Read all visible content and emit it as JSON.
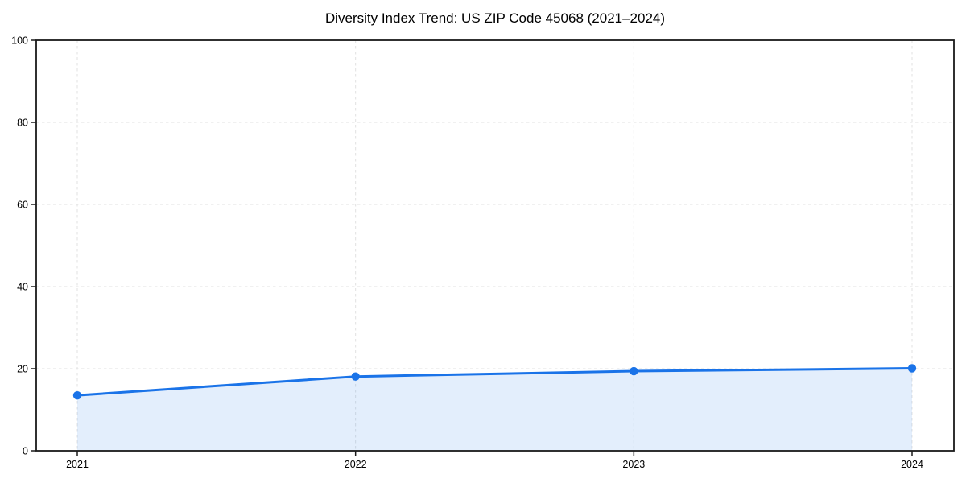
{
  "page": {
    "background": "#ffffff"
  },
  "chart_data": {
    "type": "line",
    "title": "Diversity Index Trend: US ZIP Code 45068 (2021–2024)",
    "categories": [
      "2021",
      "2022",
      "2023",
      "2024"
    ],
    "series": [
      {
        "name": "Diversity Index",
        "values": [
          13.5,
          18.1,
          19.4,
          20.1
        ]
      }
    ],
    "xlabel": "",
    "ylabel": "",
    "ylim": [
      0,
      100
    ],
    "yticks": [
      0,
      20,
      40,
      60,
      80,
      100
    ],
    "grid": true,
    "grid_style": "dashed",
    "legend": "none",
    "area_fill": true,
    "markers": true,
    "colors": {
      "line": "#1a73e8",
      "marker": "#1a73e8",
      "area_fill": "#1a73e8",
      "area_fill_opacity": 0.12,
      "grid": "#e2e2e2",
      "axis": "#1a1a1a",
      "text": "#000000",
      "background": "#ffffff"
    }
  }
}
